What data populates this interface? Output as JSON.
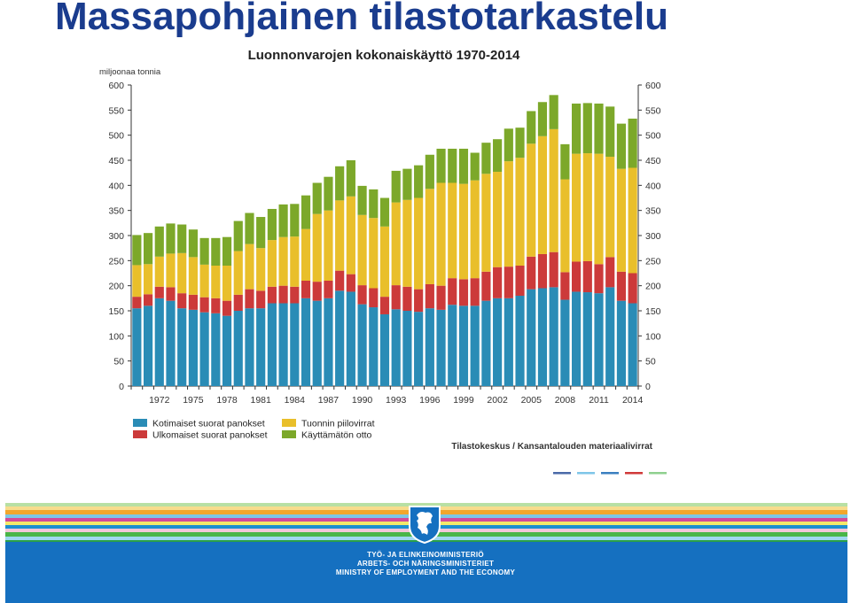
{
  "slide": {
    "title": "Massapohjainen tilastotarkastelu"
  },
  "chart_data": {
    "type": "bar",
    "stacked": true,
    "title": "Luonnonvarojen kokonaiskäyttö 1970-2014",
    "ylabel": "miljoonaa tonnia",
    "ylim": [
      0,
      600
    ],
    "yticks": [
      0,
      50,
      100,
      150,
      200,
      250,
      300,
      350,
      400,
      450,
      500,
      550,
      600
    ],
    "grid": false,
    "legend_position": "bottom-left",
    "source": "Tilastokeskus / Kansantalouden materiaalivirrat",
    "categories": [
      "1970",
      "1971",
      "1972",
      "1973",
      "1974",
      "1975",
      "1976",
      "1977",
      "1978",
      "1979",
      "1980",
      "1981",
      "1982",
      "1983",
      "1984",
      "1985",
      "1986",
      "1987",
      "1988",
      "1989",
      "1990",
      "1991",
      "1992",
      "1993",
      "1994",
      "1995",
      "1996",
      "1997",
      "1998",
      "1999",
      "2000",
      "2001",
      "2002",
      "2003",
      "2004",
      "2005",
      "2006",
      "2007",
      "2008",
      "2009",
      "2010",
      "2011",
      "2012",
      "2013",
      "2014"
    ],
    "xtick_labels": [
      "1972",
      "1975",
      "1978",
      "1981",
      "1984",
      "1987",
      "1990",
      "1993",
      "1996",
      "1999",
      "2002",
      "2005",
      "2008",
      "2011",
      "2014"
    ],
    "series": [
      {
        "name": "Kotimaiset suorat panokset",
        "color": "#2a8cb6",
        "values": [
          155,
          160,
          175,
          170,
          155,
          152,
          147,
          145,
          140,
          150,
          155,
          155,
          165,
          165,
          165,
          175,
          170,
          175,
          190,
          188,
          163,
          157,
          143,
          153,
          150,
          148,
          155,
          152,
          162,
          160,
          160,
          170,
          175,
          175,
          180,
          193,
          195,
          197,
          172,
          188,
          187,
          185,
          197,
          170,
          165
        ]
      },
      {
        "name": "Ulkomaiset suorat panokset",
        "color": "#cc3a3a",
        "values": [
          23,
          23,
          23,
          27,
          30,
          30,
          30,
          30,
          30,
          32,
          38,
          35,
          33,
          35,
          33,
          35,
          38,
          35,
          40,
          35,
          38,
          38,
          35,
          48,
          48,
          45,
          48,
          48,
          53,
          53,
          55,
          58,
          62,
          63,
          60,
          65,
          68,
          70,
          55,
          60,
          62,
          58,
          60,
          58,
          60
        ]
      },
      {
        "name": "Tuonnin piilovirrat",
        "color": "#e9bf2b",
        "values": [
          63,
          60,
          60,
          67,
          80,
          75,
          65,
          65,
          70,
          87,
          90,
          85,
          93,
          97,
          100,
          103,
          135,
          140,
          140,
          155,
          140,
          140,
          140,
          165,
          173,
          182,
          190,
          205,
          190,
          190,
          195,
          195,
          190,
          210,
          215,
          225,
          235,
          245,
          185,
          215,
          215,
          220,
          200,
          205,
          210
        ]
      },
      {
        "name": "Käyttämätön otto",
        "color": "#7ca82a",
        "values": [
          60,
          62,
          60,
          60,
          57,
          55,
          53,
          55,
          57,
          60,
          62,
          62,
          62,
          65,
          65,
          67,
          62,
          67,
          68,
          72,
          58,
          57,
          57,
          63,
          62,
          65,
          68,
          68,
          68,
          70,
          55,
          62,
          65,
          65,
          60,
          65,
          68,
          68,
          70,
          100,
          100,
          100,
          100,
          90,
          98
        ]
      }
    ]
  },
  "footer": {
    "line1": "TYÖ- JA ELINKEINOMINISTERIÖ",
    "line2": "ARBETS- OCH NÄRINGSMINISTERIET",
    "line3": "MINISTRY OF EMPLOYMENT AND THE ECONOMY",
    "stripe_colors": [
      "#b8e0a4",
      "#f7dc8c",
      "#f2a62c",
      "#7dc6e6",
      "#d24a9a",
      "#f4e96a",
      "#1c8fd0",
      "#f3c6d9",
      "#49b648",
      "#9fd7ef",
      "#2aa04a",
      "#0a66b5"
    ]
  }
}
